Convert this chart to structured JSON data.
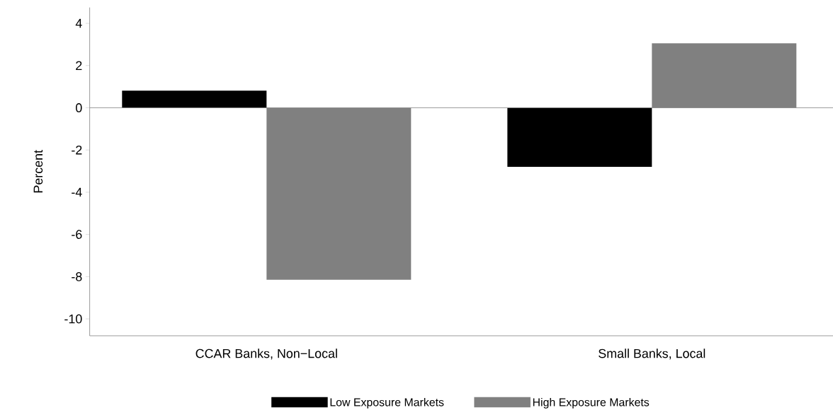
{
  "chart_data": {
    "type": "bar",
    "ylabel": "Percent",
    "categories": [
      "CCAR Banks, Non−Local",
      "Small Banks, Local"
    ],
    "series": [
      {
        "name": "Low Exposure Markets",
        "color": "#000000",
        "values": [
          0.81,
          -2.8
        ]
      },
      {
        "name": "High Exposure Markets",
        "color": "#808080",
        "values": [
          -8.15,
          3.05
        ]
      }
    ],
    "ylim": [
      -10.8,
      4.75
    ],
    "yticks": [
      -10,
      -8,
      -6,
      -4,
      -2,
      0,
      2,
      4
    ],
    "ref_lines": [
      {
        "axis": "y",
        "value": 0,
        "color": "#808080"
      }
    ],
    "grid": false,
    "legend": "bottom"
  }
}
